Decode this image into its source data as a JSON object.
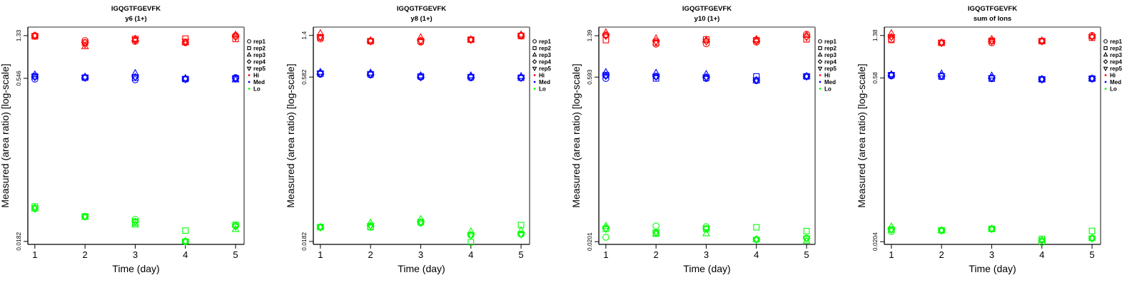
{
  "chart_data": [
    {
      "type": "scatter",
      "title": "IGQGTFGEVFK",
      "subtitle": "y6 (1+)",
      "xlabel": "Time (day)",
      "ylabel": "Measured (area ratio) [log-scale]",
      "yscale": "log",
      "x": [
        1,
        2,
        3,
        4,
        5
      ],
      "xtick_labels": [
        "1",
        "2",
        "3",
        "4",
        "5"
      ],
      "xlim": [
        0.86,
        5.17
      ],
      "ylim": [
        0.0171,
        1.59
      ],
      "yticks": [
        0.0182,
        0.546,
        1.33
      ],
      "ytick_labels": [
        "0.0182",
        "0.546",
        "1.33"
      ],
      "series": [
        {
          "name": "Hi",
          "color": "#ff0000",
          "values": [
            [
              1.33,
              1.31,
              1.33,
              1.33,
              1.33
            ],
            [
              1.2,
              1.15,
              1.06,
              1.15,
              1.11
            ],
            [
              1.18,
              1.24,
              1.24,
              1.2,
              1.22
            ],
            [
              1.15,
              1.25,
              1.15,
              1.16,
              1.18
            ],
            [
              1.33,
              1.24,
              1.35,
              1.31,
              1.29
            ]
          ]
        },
        {
          "name": "Med",
          "color": "#0000ff",
          "values": [
            [
              0.538,
              0.57,
              0.588,
              0.562,
              0.562
            ],
            [
              0.554,
              0.554,
              0.562,
              0.554,
              0.554
            ],
            [
              0.53,
              0.554,
              0.606,
              0.562,
              0.562
            ],
            [
              0.538,
              0.538,
              0.546,
              0.538,
              0.538
            ],
            [
              0.554,
              0.546,
              0.53,
              0.546,
              0.546
            ]
          ]
        },
        {
          "name": "Lo",
          "color": "#00ff00",
          "values": [
            [
              0.036,
              0.0377,
              0.036,
              0.0366,
              0.0366
            ],
            [
              0.0306,
              0.0306,
              0.0302,
              0.0306,
              0.0306
            ],
            [
              0.0288,
              0.0268,
              0.0257,
              0.0276,
              0.0276
            ],
            [
              0.0182,
              0.0228,
              0.0182,
              0.0182,
              0.0182
            ],
            [
              0.0253,
              0.0257,
              0.0234,
              0.0249,
              0.0249
            ]
          ]
        }
      ]
    },
    {
      "type": "scatter",
      "title": "IGQGTFGEVFK",
      "subtitle": "y8 (1+)",
      "xlabel": "Time (day)",
      "ylabel": "Measured (area ratio) [log-scale]",
      "yscale": "log",
      "x": [
        1,
        2,
        3,
        4,
        5
      ],
      "xtick_labels": [
        "1",
        "2",
        "3",
        "4",
        "5"
      ],
      "xlim": [
        0.86,
        5.17
      ],
      "ylim": [
        0.0171,
        1.67
      ],
      "yticks": [
        0.0182,
        0.582,
        1.4
      ],
      "ytick_labels": [
        "0.0182",
        "0.582",
        "1.4"
      ],
      "series": [
        {
          "name": "Hi",
          "color": "#ff0000",
          "values": [
            [
              1.3,
              1.34,
              1.46,
              1.34,
              1.36
            ],
            [
              1.24,
              1.24,
              1.26,
              1.24,
              1.24
            ],
            [
              1.22,
              1.24,
              1.34,
              1.26,
              1.24
            ],
            [
              1.28,
              1.28,
              1.28,
              1.28,
              1.28
            ],
            [
              1.4,
              1.38,
              1.42,
              1.4,
              1.4
            ]
          ]
        },
        {
          "name": "Med",
          "color": "#0000ff",
          "values": [
            [
              0.618,
              0.627,
              0.645,
              0.627,
              0.627
            ],
            [
              0.609,
              0.618,
              0.636,
              0.618,
              0.618
            ],
            [
              0.582,
              0.591,
              0.6,
              0.582,
              0.582
            ],
            [
              0.574,
              0.582,
              0.6,
              0.582,
              0.582
            ],
            [
              0.574,
              0.574,
              0.591,
              0.574,
              0.574
            ]
          ]
        },
        {
          "name": "Lo",
          "color": "#00ff00",
          "values": [
            [
              0.0246,
              0.0246,
              0.0246,
              0.0246,
              0.0246
            ],
            [
              0.0246,
              0.0246,
              0.0269,
              0.0254,
              0.0254
            ],
            [
              0.0269,
              0.0273,
              0.029,
              0.0273,
              0.0273
            ],
            [
              0.0208,
              0.0179,
              0.0224,
              0.0209,
              0.0209
            ],
            [
              0.0212,
              0.0257,
              0.0228,
              0.0212,
              0.0212
            ]
          ]
        }
      ]
    },
    {
      "type": "scatter",
      "title": "IGQGTFGEVFK",
      "subtitle": "y10 (1+)",
      "xlabel": "Time (day)",
      "ylabel": "Measured (area ratio) [log-scale]",
      "yscale": "log",
      "x": [
        1,
        2,
        3,
        4,
        5
      ],
      "xtick_labels": [
        "1",
        "2",
        "3",
        "4",
        "5"
      ],
      "xlim": [
        0.86,
        5.17
      ],
      "ylim": [
        0.019,
        1.66
      ],
      "yticks": [
        0.0201,
        0.593,
        1.39
      ],
      "ytick_labels": [
        "0.0201",
        "0.593",
        "1.39"
      ],
      "series": [
        {
          "name": "Hi",
          "color": "#ff0000",
          "values": [
            [
              1.41,
              1.27,
              1.48,
              1.39,
              1.39
            ],
            [
              1.17,
              1.2,
              1.31,
              1.24,
              1.22
            ],
            [
              1.18,
              1.29,
              1.27,
              1.24,
              1.24
            ],
            [
              1.22,
              1.27,
              1.29,
              1.25,
              1.25
            ],
            [
              1.43,
              1.29,
              1.41,
              1.37,
              1.35
            ]
          ]
        },
        {
          "name": "Med",
          "color": "#0000ff",
          "values": [
            [
              0.577,
              0.619,
              0.654,
              0.61,
              0.61
            ],
            [
              0.602,
              0.577,
              0.645,
              0.602,
              0.602
            ],
            [
              0.577,
              0.585,
              0.628,
              0.593,
              0.593
            ],
            [
              0.551,
              0.602,
              0.551,
              0.559,
              0.559
            ],
            [
              0.602,
              0.602,
              0.602,
              0.602,
              0.602
            ]
          ]
        },
        {
          "name": "Lo",
          "color": "#00ff00",
          "values": [
            [
              0.022,
              0.0262,
              0.0277,
              0.0265,
              0.0262
            ],
            [
              0.0277,
              0.0237,
              0.0237,
              0.0244,
              0.0244
            ],
            [
              0.0273,
              0.0262,
              0.0237,
              0.0262,
              0.0262
            ],
            [
              0.021,
              0.027,
              0.021,
              0.021,
              0.021
            ],
            [
              0.0216,
              0.025,
              0.0204,
              0.0216,
              0.0216
            ]
          ]
        }
      ]
    },
    {
      "type": "scatter",
      "title": "IGQGTFGEVFK",
      "subtitle": "sum of Ions",
      "xlabel": "Time (day)",
      "ylabel": "Measured (area ratio) [log-scale]",
      "yscale": "log",
      "x": [
        1,
        2,
        3,
        4,
        5
      ],
      "xtick_labels": [
        "1",
        "2",
        "3",
        "4",
        "5"
      ],
      "xlim": [
        0.86,
        5.17
      ],
      "ylim": [
        0.0193,
        1.64
      ],
      "yticks": [
        0.0204,
        0.58,
        1.38
      ],
      "ytick_labels": [
        "0.0204",
        "0.58",
        "1.38"
      ],
      "series": [
        {
          "name": "Hi",
          "color": "#ff0000",
          "values": [
            [
              1.28,
              1.26,
              1.44,
              1.34,
              1.34
            ],
            [
              1.19,
              1.19,
              1.19,
              1.19,
              1.19
            ],
            [
              1.19,
              1.24,
              1.28,
              1.23,
              1.23
            ],
            [
              1.23,
              1.23,
              1.24,
              1.23,
              1.23
            ],
            [
              1.38,
              1.32,
              1.36,
              1.34,
              1.34
            ]
          ]
        },
        {
          "name": "Med",
          "color": "#0000ff",
          "values": [
            [
              0.605,
              0.614,
              0.622,
              0.614,
              0.614
            ],
            [
              0.597,
              0.597,
              0.631,
              0.605,
              0.605
            ],
            [
              0.572,
              0.572,
              0.605,
              0.58,
              0.58
            ],
            [
              0.564,
              0.564,
              0.564,
              0.564,
              0.564
            ],
            [
              0.572,
              0.572,
              0.572,
              0.572,
              0.572
            ]
          ]
        },
        {
          "name": "Lo",
          "color": "#00ff00",
          "values": [
            [
              0.0251,
              0.0261,
              0.0277,
              0.0261,
              0.0261
            ],
            [
              0.0257,
              0.0257,
              0.0257,
              0.0257,
              0.0257
            ],
            [
              0.0265,
              0.0265,
              0.0265,
              0.0265,
              0.0265
            ],
            [
              0.0201,
              0.0216,
              0.021,
              0.021,
              0.021
            ],
            [
              0.0219,
              0.0254,
              0.0219,
              0.0219,
              0.0219
            ]
          ]
        }
      ]
    }
  ],
  "legend": {
    "position": "right",
    "reps": [
      {
        "label": "rep1",
        "shape": "circle"
      },
      {
        "label": "rep2",
        "shape": "square"
      },
      {
        "label": "rep3",
        "shape": "triangle-up"
      },
      {
        "label": "rep4",
        "shape": "diamond"
      },
      {
        "label": "rep5",
        "shape": "triangle-down"
      }
    ],
    "groups": [
      {
        "label": "Hi",
        "color": "#ff0000"
      },
      {
        "label": "Med",
        "color": "#0000ff"
      },
      {
        "label": "Lo",
        "color": "#00ff00"
      }
    ]
  }
}
